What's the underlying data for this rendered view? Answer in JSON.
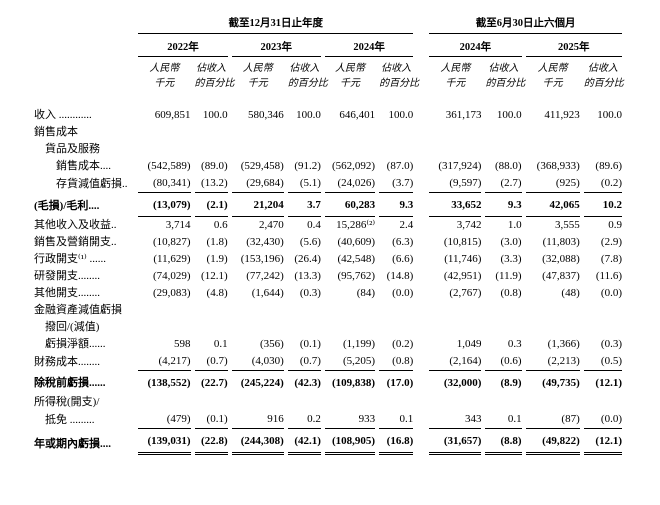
{
  "table": {
    "col_groups": [
      {
        "title": "截至12月31日止年度",
        "years": [
          "2022年",
          "2023年",
          "2024年"
        ]
      },
      {
        "title": "截至6月30日止六個月",
        "years": [
          "2024年",
          "2025年"
        ]
      }
    ],
    "subheaders": {
      "amount": [
        "人民幣",
        "千元"
      ],
      "percent": [
        "佔收入",
        "的百分比"
      ]
    },
    "rows": [
      {
        "label": "收入 ............",
        "indent": 0,
        "bold": false,
        "rule": "none",
        "cells": [
          "609,851",
          "100.0",
          "580,346",
          "100.0",
          "646,401",
          "100.0",
          "361,173",
          "100.0",
          "411,923",
          "100.0"
        ]
      },
      {
        "label": "銷售成本",
        "indent": 0,
        "bold": false,
        "rule": "none",
        "cells": []
      },
      {
        "label": "貨品及服務",
        "indent": 1,
        "bold": false,
        "rule": "none",
        "cells": []
      },
      {
        "label": "銷售成本....",
        "indent": 2,
        "bold": false,
        "rule": "none",
        "cells": [
          "(542,589)",
          "(89.0)",
          "(529,458)",
          "(91.2)",
          "(562,092)",
          "(87.0)",
          "(317,924)",
          "(88.0)",
          "(368,933)",
          "(89.6)"
        ]
      },
      {
        "label": "存貨減值虧損..",
        "indent": 2,
        "bold": false,
        "rule": "single",
        "cells": [
          "(80,341)",
          "(13.2)",
          "(29,684)",
          "(5.1)",
          "(24,026)",
          "(3.7)",
          "(9,597)",
          "(2.7)",
          "(925)",
          "(0.2)"
        ]
      },
      {
        "label": "(毛損)/毛利....",
        "indent": 0,
        "bold": true,
        "rule": "single",
        "cells": [
          "(13,079)",
          "(2.1)",
          "21,204",
          "3.7",
          "60,283",
          "9.3",
          "33,652",
          "9.3",
          "42,065",
          "10.2"
        ]
      },
      {
        "label": "其他收入及收益..",
        "indent": 0,
        "bold": false,
        "rule": "none",
        "cells": [
          "3,714",
          "0.6",
          "2,470",
          "0.4",
          "15,286⁽²⁾",
          "2.4",
          "3,742",
          "1.0",
          "3,555",
          "0.9"
        ]
      },
      {
        "label": "銷售及營銷開支..",
        "indent": 0,
        "bold": false,
        "rule": "none",
        "cells": [
          "(10,827)",
          "(1.8)",
          "(32,430)",
          "(5.6)",
          "(40,609)",
          "(6.3)",
          "(10,815)",
          "(3.0)",
          "(11,803)",
          "(2.9)"
        ]
      },
      {
        "label": "行政開支⁽¹⁾ ......",
        "indent": 0,
        "bold": false,
        "rule": "none",
        "cells": [
          "(11,629)",
          "(1.9)",
          "(153,196)",
          "(26.4)",
          "(42,548)",
          "(6.6)",
          "(11,746)",
          "(3.3)",
          "(32,088)",
          "(7.8)"
        ]
      },
      {
        "label": "研發開支........",
        "indent": 0,
        "bold": false,
        "rule": "none",
        "cells": [
          "(74,029)",
          "(12.1)",
          "(77,242)",
          "(13.3)",
          "(95,762)",
          "(14.8)",
          "(42,951)",
          "(11.9)",
          "(47,837)",
          "(11.6)"
        ]
      },
      {
        "label": "其他開支........",
        "indent": 0,
        "bold": false,
        "rule": "none",
        "cells": [
          "(29,083)",
          "(4.8)",
          "(1,644)",
          "(0.3)",
          "(84)",
          "(0.0)",
          "(2,767)",
          "(0.8)",
          "(48)",
          "(0.0)"
        ]
      },
      {
        "label": "金融資產減值虧損",
        "indent": 0,
        "bold": false,
        "rule": "none",
        "cells": []
      },
      {
        "label": "撥回/(減值)",
        "indent": 1,
        "bold": false,
        "rule": "none",
        "cells": []
      },
      {
        "label": "虧損淨額......",
        "indent": 1,
        "bold": false,
        "rule": "none",
        "cells": [
          "598",
          "0.1",
          "(356)",
          "(0.1)",
          "(1,199)",
          "(0.2)",
          "1,049",
          "0.3",
          "(1,366)",
          "(0.3)"
        ]
      },
      {
        "label": "財務成本........",
        "indent": 0,
        "bold": false,
        "rule": "single",
        "cells": [
          "(4,217)",
          "(0.7)",
          "(4,030)",
          "(0.7)",
          "(5,205)",
          "(0.8)",
          "(2,164)",
          "(0.6)",
          "(2,213)",
          "(0.5)"
        ]
      },
      {
        "label": "除稅前虧損......",
        "indent": 0,
        "bold": true,
        "rule": "none",
        "cells": [
          "(138,552)",
          "(22.7)",
          "(245,224)",
          "(42.3)",
          "(109,838)",
          "(17.0)",
          "(32,000)",
          "(8.9)",
          "(49,735)",
          "(12.1)"
        ]
      },
      {
        "label": "所得稅(開支)/",
        "indent": 0,
        "bold": false,
        "rule": "none",
        "cells": []
      },
      {
        "label": "抵免 .........",
        "indent": 1,
        "bold": false,
        "rule": "single",
        "cells": [
          "(479)",
          "(0.1)",
          "916",
          "0.2",
          "933",
          "0.1",
          "343",
          "0.1",
          "(87)",
          "(0.0)"
        ]
      },
      {
        "label": "年或期內虧損....",
        "indent": 0,
        "bold": true,
        "rule": "double",
        "cells": [
          "(139,031)",
          "(22.8)",
          "(244,308)",
          "(42.1)",
          "(108,905)",
          "(16.8)",
          "(31,657)",
          "(8.8)",
          "(49,822)",
          "(12.1)"
        ]
      }
    ]
  }
}
